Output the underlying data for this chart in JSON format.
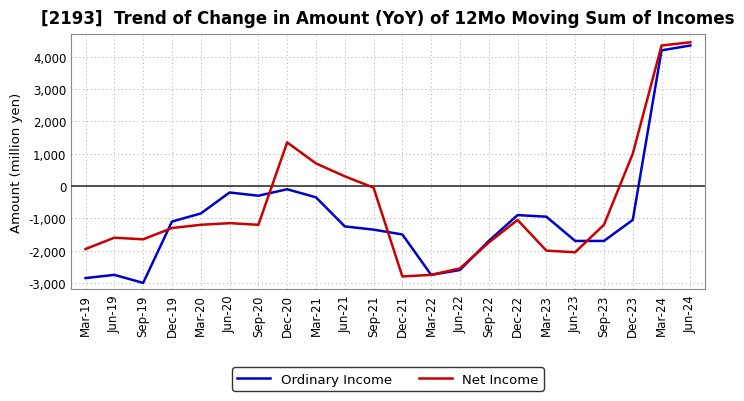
{
  "title": "[2193]  Trend of Change in Amount (YoY) of 12Mo Moving Sum of Incomes",
  "ylabel": "Amount (million yen)",
  "x_labels": [
    "Mar-19",
    "Jun-19",
    "Sep-19",
    "Dec-19",
    "Mar-20",
    "Jun-20",
    "Sep-20",
    "Dec-20",
    "Mar-21",
    "Jun-21",
    "Sep-21",
    "Dec-21",
    "Mar-22",
    "Jun-22",
    "Sep-22",
    "Dec-22",
    "Mar-23",
    "Jun-23",
    "Sep-23",
    "Dec-23",
    "Mar-24",
    "Jun-24"
  ],
  "ordinary_income": [
    -2850,
    -2750,
    -3000,
    -1100,
    -850,
    -200,
    -300,
    -100,
    -350,
    -1250,
    -1350,
    -1500,
    -2750,
    -2600,
    -1700,
    -900,
    -950,
    -1700,
    -1700,
    -1050,
    4200,
    4350
  ],
  "net_income": [
    -1950,
    -1600,
    -1650,
    -1300,
    -1200,
    -1150,
    -1200,
    1350,
    700,
    300,
    -50,
    -2800,
    -2750,
    -2550,
    -1750,
    -1050,
    -2000,
    -2050,
    -1200,
    1000,
    4350,
    4450
  ],
  "ordinary_income_color": "#0000cc",
  "net_income_color": "#cc0000",
  "ylim": [
    -3200,
    4700
  ],
  "yticks": [
    -3000,
    -2000,
    -1000,
    0,
    1000,
    2000,
    3000,
    4000
  ],
  "background_color": "#ffffff",
  "grid_color": "#aaaaaa",
  "zero_line_color": "#333333",
  "legend_ordinary": "Ordinary Income",
  "legend_net": "Net Income",
  "title_fontsize": 12,
  "label_fontsize": 9.5,
  "tick_fontsize": 8.5,
  "line_width": 1.8
}
